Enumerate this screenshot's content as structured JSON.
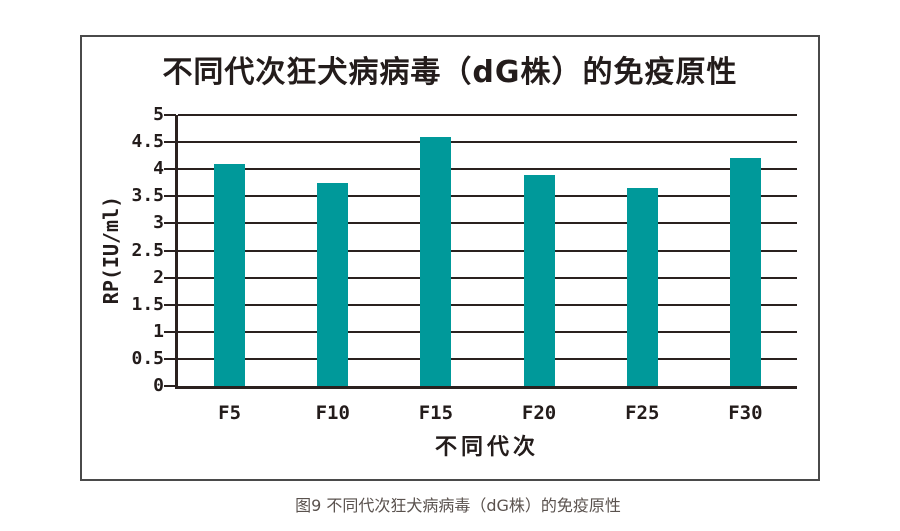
{
  "figure": {
    "caption": "图9 不同代次狂犬病病毒（dG株）的免疫原性"
  },
  "chart_data": {
    "type": "bar",
    "title": "不同代次狂犬病病毒（dG株）的免疫原性",
    "categories": [
      "F5",
      "F10",
      "F15",
      "F20",
      "F25",
      "F30"
    ],
    "values": [
      4.1,
      3.75,
      4.6,
      3.9,
      3.65,
      4.2
    ],
    "xlabel": "不同代次",
    "ylabel": "RP(IU/ml)",
    "ylim": [
      0,
      5
    ],
    "ytick_step": 0.5,
    "y_tick_labels": [
      "0",
      "0.5",
      "1",
      "1.5",
      "2",
      "2.5",
      "3",
      "3.5",
      "4",
      "4.5",
      "5"
    ],
    "grid": true,
    "legend": "none",
    "colors": {
      "bar": "#00999a",
      "grid": "#2a211f",
      "axis": "#2a211f",
      "title_text": "#231c1b",
      "caption_text": "#5a524e",
      "frame_border": "#4a4a4a",
      "background": "#ffffff"
    }
  }
}
